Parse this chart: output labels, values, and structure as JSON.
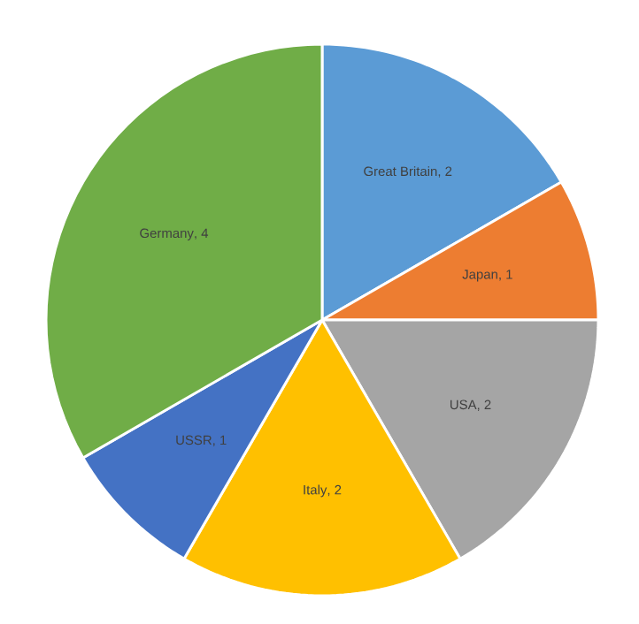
{
  "chart_data": {
    "type": "pie",
    "categories": [
      "Great Britain",
      "Japan",
      "USA",
      "Italy",
      "USSR",
      "Germany"
    ],
    "values": [
      2,
      1,
      2,
      2,
      1,
      4
    ],
    "colors": [
      "#5b9bd5",
      "#ed7d31",
      "#a5a5a5",
      "#ffc000",
      "#4472c4",
      "#70ad47"
    ],
    "value_labels": [
      ", 2",
      ", 1",
      ", 2",
      ", 2",
      ", 1",
      ", 4"
    ]
  }
}
